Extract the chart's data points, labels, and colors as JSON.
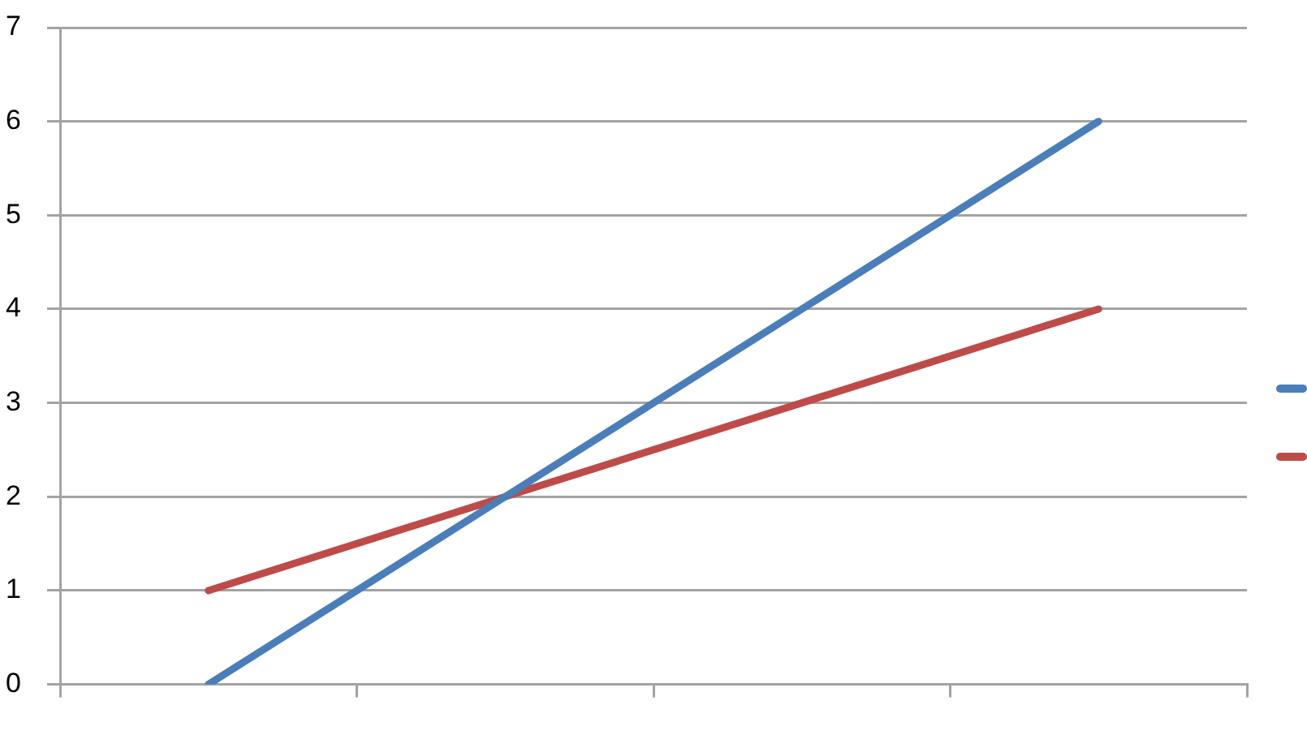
{
  "chart_data": {
    "type": "line",
    "categories": [
      null,
      null,
      null,
      null
    ],
    "series": [
      {
        "color": "#4a7ebb",
        "values": [
          0,
          2,
          4,
          6
        ]
      },
      {
        "color": "#be4b48",
        "values": [
          1,
          2,
          3,
          4
        ]
      }
    ],
    "ylim": [
      0,
      7
    ],
    "yticks": [
      0,
      1,
      2,
      3,
      4,
      5,
      6,
      7
    ],
    "grid": "y",
    "marker": "none"
  }
}
